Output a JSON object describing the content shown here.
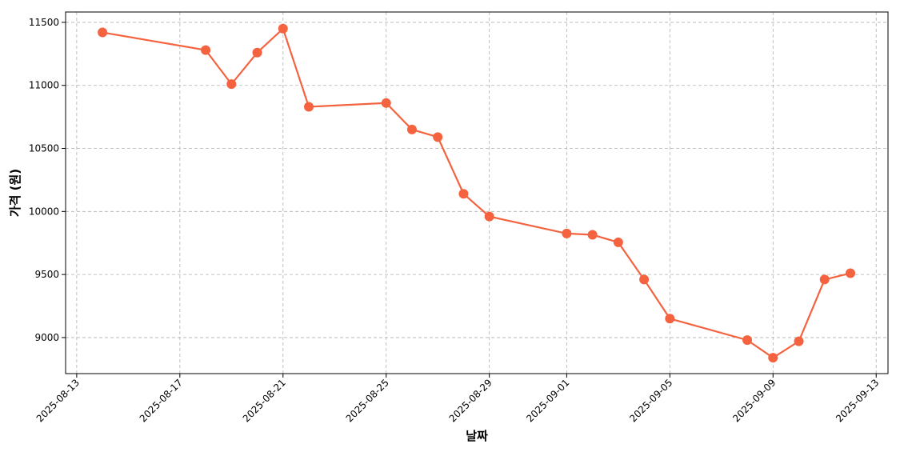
{
  "chart_data": {
    "type": "line",
    "xlabel": "날짜",
    "ylabel": "가격 (원)",
    "x": [
      "2025-08-14",
      "2025-08-18",
      "2025-08-19",
      "2025-08-20",
      "2025-08-21",
      "2025-08-22",
      "2025-08-25",
      "2025-08-26",
      "2025-08-27",
      "2025-08-28",
      "2025-08-29",
      "2025-09-01",
      "2025-09-02",
      "2025-09-03",
      "2025-09-04",
      "2025-09-05",
      "2025-09-08",
      "2025-09-09",
      "2025-09-10",
      "2025-09-11",
      "2025-09-12"
    ],
    "series": [
      {
        "color": "#f4623f",
        "values": [
          11420,
          11280,
          11010,
          11260,
          11450,
          10830,
          10860,
          10650,
          10590,
          10140,
          9960,
          9825,
          9815,
          9755,
          9460,
          9150,
          8980,
          8840,
          8970,
          9460,
          9510
        ]
      }
    ],
    "xlim": [
      "2025-08-12T13:40",
      "2025-09-13T11:00"
    ],
    "xticks": [
      "2025-08-13",
      "2025-08-17",
      "2025-08-21",
      "2025-08-25",
      "2025-08-29",
      "2025-09-01",
      "2025-09-05",
      "2025-09-09",
      "2025-09-13"
    ],
    "ylim": [
      8714,
      11582
    ],
    "yticks": [
      9000,
      9500,
      10000,
      10500,
      11000,
      11500
    ],
    "grid": true
  }
}
